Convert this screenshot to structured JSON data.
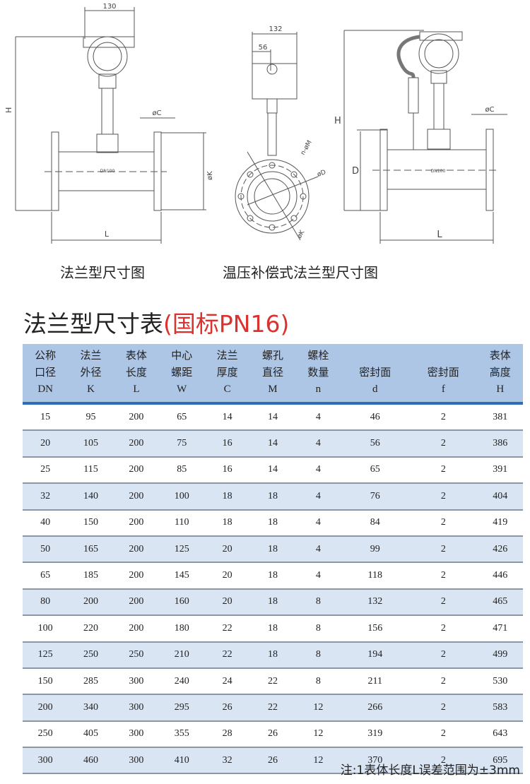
{
  "drawings": {
    "flange": {
      "width_dim": "130",
      "height_dim": "H",
      "flange_thickness": "øC",
      "flange_od": "øK",
      "length": "L",
      "size_label": "DN100",
      "caption": "法兰型尺寸图"
    },
    "side_view": {
      "width_dim": "132",
      "offset_dim": "56",
      "bolt_holes": "n-øM",
      "seal_dia": "øD",
      "flange_od": "øK"
    },
    "compensated": {
      "height_dim": "H",
      "pipe_dim": "D",
      "flange_thickness": "øC",
      "length": "L",
      "size_label": "DN100",
      "caption": "温压补偿式法兰型尺寸图"
    }
  },
  "table": {
    "title": "法兰型尺寸表",
    "title_suffix": "(国标PN16)",
    "accent_color": "#d9322f",
    "header_color": "#aec6e6",
    "columns": [
      {
        "l1": "公称",
        "l2": "口径",
        "sym": "DN"
      },
      {
        "l1": "法兰",
        "l2": "外径",
        "sym": "K"
      },
      {
        "l1": "表体",
        "l2": "长度",
        "sym": "L"
      },
      {
        "l1": "中心",
        "l2": "螺距",
        "sym": "W"
      },
      {
        "l1": "法兰",
        "l2": "厚度",
        "sym": "C"
      },
      {
        "l1": "螺孔",
        "l2": "直径",
        "sym": "M"
      },
      {
        "l1": "螺栓",
        "l2": "数量",
        "sym": "n"
      },
      {
        "l1": "",
        "l2": "密封面",
        "sym": "d"
      },
      {
        "l1": "",
        "l2": "密封面",
        "sym": "f"
      },
      {
        "l1": "表体",
        "l2": "高度",
        "sym": "H"
      }
    ],
    "rows": [
      [
        "15",
        "95",
        "200",
        "65",
        "14",
        "14",
        "4",
        "46",
        "2",
        "381"
      ],
      [
        "20",
        "105",
        "200",
        "75",
        "16",
        "14",
        "4",
        "56",
        "2",
        "386"
      ],
      [
        "25",
        "115",
        "200",
        "85",
        "16",
        "14",
        "4",
        "65",
        "2",
        "391"
      ],
      [
        "32",
        "140",
        "200",
        "100",
        "18",
        "18",
        "4",
        "76",
        "2",
        "404"
      ],
      [
        "40",
        "150",
        "200",
        "110",
        "18",
        "18",
        "4",
        "84",
        "2",
        "419"
      ],
      [
        "50",
        "165",
        "200",
        "125",
        "20",
        "18",
        "4",
        "99",
        "2",
        "426"
      ],
      [
        "65",
        "185",
        "200",
        "145",
        "20",
        "18",
        "4",
        "118",
        "2",
        "446"
      ],
      [
        "80",
        "200",
        "200",
        "160",
        "20",
        "18",
        "8",
        "132",
        "2",
        "465"
      ],
      [
        "100",
        "220",
        "200",
        "180",
        "22",
        "18",
        "8",
        "156",
        "2",
        "471"
      ],
      [
        "125",
        "250",
        "250",
        "210",
        "22",
        "18",
        "8",
        "194",
        "2",
        "499"
      ],
      [
        "150",
        "285",
        "300",
        "240",
        "24",
        "22",
        "8",
        "211",
        "2",
        "530"
      ],
      [
        "200",
        "340",
        "300",
        "295",
        "26",
        "22",
        "12",
        "266",
        "2",
        "583"
      ],
      [
        "250",
        "405",
        "300",
        "355",
        "28",
        "26",
        "12",
        "319",
        "2",
        "643"
      ],
      [
        "300",
        "460",
        "300",
        "410",
        "32",
        "26",
        "12",
        "370",
        "2",
        "695"
      ]
    ],
    "note": "注:1表体长度L误差范围为±3mm"
  }
}
